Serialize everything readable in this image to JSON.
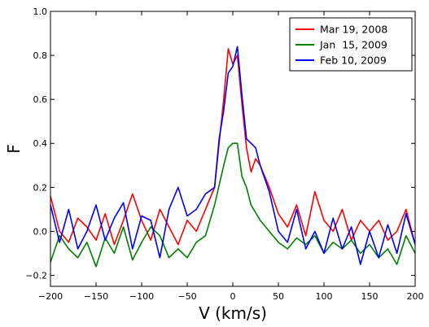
{
  "chart_data": {
    "type": "line",
    "title": "",
    "xlabel": "V (km/s)",
    "ylabel": "F",
    "xlim": [
      -200,
      200
    ],
    "ylim": [
      -0.25,
      1.0
    ],
    "x_ticks": [
      -200,
      -150,
      -100,
      -50,
      0,
      50,
      100,
      150,
      200
    ],
    "x_tick_labels": [
      "−200",
      "−150",
      "−100",
      "−50",
      "0",
      "50",
      "100",
      "150",
      "200"
    ],
    "y_ticks": [
      -0.2,
      0.0,
      0.2,
      0.4,
      0.6,
      0.8,
      1.0
    ],
    "y_tick_labels": [
      "−0.2",
      "0.0",
      "0.2",
      "0.4",
      "0.6",
      "0.8",
      "1.0"
    ],
    "grid": false,
    "legend_position": "top-right",
    "series": [
      {
        "name": "Mar 19, 2008",
        "color": "#ff0000",
        "x": [
          -200,
          -190,
          -180,
          -170,
          -160,
          -150,
          -140,
          -130,
          -120,
          -110,
          -100,
          -90,
          -80,
          -70,
          -60,
          -50,
          -40,
          -30,
          -20,
          -15,
          -10,
          -5,
          0,
          5,
          10,
          15,
          20,
          25,
          30,
          40,
          50,
          60,
          70,
          80,
          90,
          100,
          110,
          120,
          130,
          140,
          150,
          160,
          170,
          180,
          190,
          200
        ],
        "values": [
          0.16,
          0.0,
          -0.05,
          0.06,
          0.02,
          -0.04,
          0.08,
          -0.06,
          0.05,
          0.17,
          0.05,
          -0.04,
          0.1,
          0.02,
          -0.06,
          0.05,
          0.0,
          0.1,
          0.2,
          0.4,
          0.6,
          0.83,
          0.76,
          0.8,
          0.58,
          0.38,
          0.27,
          0.33,
          0.3,
          0.2,
          0.08,
          0.02,
          0.12,
          -0.02,
          0.18,
          0.05,
          0.0,
          0.1,
          -0.04,
          0.05,
          0.0,
          0.05,
          -0.04,
          0.0,
          0.1,
          -0.06
        ]
      },
      {
        "name": "Jan  15, 2009",
        "color": "#008000",
        "x": [
          -200,
          -190,
          -180,
          -170,
          -160,
          -150,
          -140,
          -130,
          -120,
          -110,
          -100,
          -90,
          -80,
          -70,
          -60,
          -50,
          -40,
          -30,
          -20,
          -10,
          -5,
          0,
          5,
          10,
          15,
          20,
          30,
          40,
          50,
          60,
          70,
          80,
          90,
          100,
          110,
          120,
          130,
          140,
          150,
          160,
          170,
          180,
          190,
          200
        ],
        "values": [
          -0.14,
          -0.02,
          -0.08,
          -0.12,
          -0.05,
          -0.16,
          -0.03,
          -0.1,
          0.02,
          -0.13,
          -0.05,
          0.02,
          -0.02,
          -0.12,
          -0.08,
          -0.12,
          -0.05,
          -0.02,
          0.12,
          0.3,
          0.38,
          0.4,
          0.4,
          0.25,
          0.2,
          0.12,
          0.05,
          0.0,
          -0.05,
          -0.08,
          -0.03,
          -0.06,
          -0.02,
          -0.1,
          -0.05,
          -0.08,
          -0.04,
          -0.1,
          -0.06,
          -0.12,
          -0.08,
          -0.15,
          -0.02,
          -0.1
        ]
      },
      {
        "name": "Feb 10, 2009",
        "color": "#0000ff",
        "x": [
          -200,
          -190,
          -180,
          -170,
          -160,
          -150,
          -140,
          -130,
          -120,
          -110,
          -100,
          -90,
          -80,
          -70,
          -60,
          -50,
          -40,
          -30,
          -20,
          -15,
          -10,
          -5,
          0,
          5,
          10,
          15,
          20,
          25,
          30,
          40,
          50,
          60,
          70,
          80,
          90,
          100,
          110,
          120,
          130,
          140,
          150,
          160,
          170,
          180,
          190,
          200
        ],
        "values": [
          0.12,
          -0.05,
          0.1,
          -0.08,
          0.0,
          0.12,
          -0.04,
          0.06,
          0.13,
          -0.08,
          0.07,
          0.05,
          -0.12,
          0.1,
          0.2,
          0.07,
          0.1,
          0.17,
          0.2,
          0.42,
          0.55,
          0.72,
          0.75,
          0.84,
          0.62,
          0.42,
          0.4,
          0.38,
          0.3,
          0.18,
          0.0,
          -0.05,
          0.1,
          -0.08,
          0.0,
          -0.1,
          0.06,
          -0.08,
          0.02,
          -0.15,
          0.0,
          -0.12,
          0.03,
          -0.1,
          0.08,
          -0.06
        ]
      }
    ]
  }
}
